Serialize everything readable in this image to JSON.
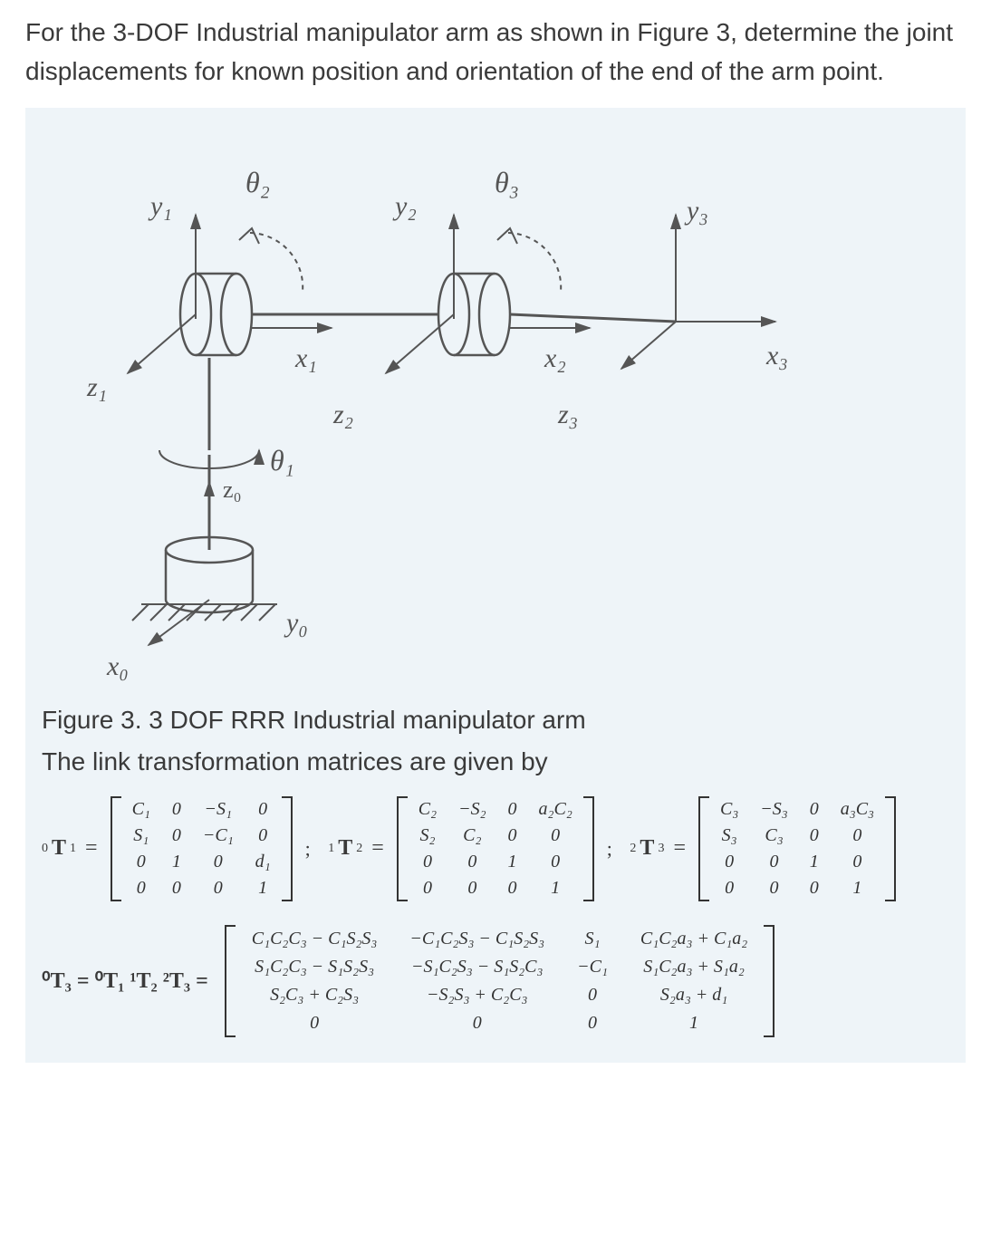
{
  "intro_text": "For the 3-DOF Industrial manipulator arm as shown in Figure 3,  determine the joint displacements for known position and orientation of the end of the arm point.",
  "figure": {
    "caption": "Figure 3.  3 DOF RRR Industrial manipulator arm",
    "bg_color": "#eef4f8",
    "stroke_color": "#555555",
    "labels": {
      "theta1": "θ₁",
      "theta2": "θ₂",
      "theta3": "θ₃",
      "x0": "x₀",
      "y0": "y₀",
      "z0": "z₀",
      "x1": "x₁",
      "y1": "y₁",
      "z1": "z₁",
      "x2": "x₂",
      "y2": "y₂",
      "z2": "z₂",
      "x3": "x₃",
      "y3": "y₃"
    }
  },
  "transforms_text": "The link transformation matrices are given by",
  "matrices": {
    "T01": {
      "label_pre": "0",
      "label": "T",
      "label_sub": "1",
      "rows": [
        [
          "C₁",
          "0",
          "−S₁",
          "0"
        ],
        [
          "S₁",
          "0",
          "−C₁",
          "0"
        ],
        [
          "0",
          "1",
          "0",
          "d₁"
        ],
        [
          "0",
          "0",
          "0",
          "1"
        ]
      ]
    },
    "T12": {
      "label_pre": "1",
      "label": "T",
      "label_sub": "2",
      "rows": [
        [
          "C₂",
          "−S₂",
          "0",
          "a₂C₂"
        ],
        [
          "S₂",
          "C₂",
          "0",
          "0"
        ],
        [
          "0",
          "0",
          "1",
          "0"
        ],
        [
          "0",
          "0",
          "0",
          "1"
        ]
      ]
    },
    "T23": {
      "label_pre": "2",
      "label": "T",
      "label_sub": "3",
      "rows": [
        [
          "C₃",
          "−S₃",
          "0",
          "a₃C₃"
        ],
        [
          "S₃",
          "C₃",
          "0",
          "0"
        ],
        [
          "0",
          "0",
          "1",
          "0"
        ],
        [
          "0",
          "0",
          "0",
          "1"
        ]
      ]
    },
    "T03": {
      "label_lhs": "⁰T₃ =  ⁰T₁  ¹T₂  ²T₃  =",
      "rows": [
        [
          "C₁C₂C₃ − C₁S₂S₃",
          "−C₁C₂S₃ − C₁S₂S₃",
          "S₁",
          "C₁C₂a₃ + C₁a₂"
        ],
        [
          "S₁C₂C₃ − S₁S₂S₃",
          "−S₁C₂S₃ − S₁S₂C₃",
          "−C₁",
          "S₁C₂a₃ + S₁a₂"
        ],
        [
          "S₂C₃ + C₂S₃",
          "−S₂S₃ + C₂C₃",
          "0",
          "S₂a₃ + d₁"
        ],
        [
          "0",
          "0",
          "0",
          "1"
        ]
      ]
    }
  },
  "colors": {
    "text": "#3a3a3a",
    "matrix": "#333333",
    "box_bg": "#eef4f8"
  },
  "fontsizes": {
    "intro": 28,
    "caption": 28,
    "matrix_cell": 20,
    "matrix_label": 24
  }
}
